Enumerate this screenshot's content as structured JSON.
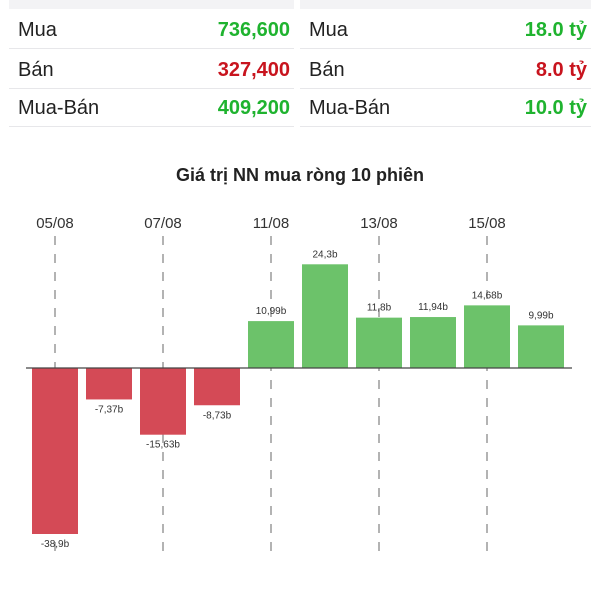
{
  "summary_left": {
    "rows": [
      {
        "label": "Mua",
        "value": "736,600",
        "tone": "green"
      },
      {
        "label": "Bán",
        "value": "327,400",
        "tone": "red"
      },
      {
        "label": "Mua-Bán",
        "value": "409,200",
        "tone": "green"
      }
    ]
  },
  "summary_right": {
    "rows": [
      {
        "label": "Mua",
        "value": "18.0 tỷ",
        "tone": "green"
      },
      {
        "label": "Bán",
        "value": "8.0 tỷ",
        "tone": "red"
      },
      {
        "label": "Mua-Bán",
        "value": "10.0 tỷ",
        "tone": "green"
      }
    ]
  },
  "colors": {
    "positive": "#6cc26a",
    "negative": "#d44a56",
    "green_text": "#1fb32f",
    "red_text": "#c8141e"
  },
  "chart_data": {
    "type": "bar",
    "title": "Giá trị NN mua ròng 10 phiên",
    "x_tick_labels": [
      "05/08",
      "07/08",
      "11/08",
      "13/08",
      "15/08"
    ],
    "x_tick_bar_index": [
      0,
      2,
      4,
      6,
      8
    ],
    "values": [
      -38.9,
      -7.37,
      -15.63,
      -8.73,
      10.99,
      24.3,
      11.8,
      11.94,
      14.68,
      9.99
    ],
    "value_labels": [
      "-38,9b",
      "-7,37b",
      "-15,63b",
      "-8,73b",
      "10,99b",
      "24,3b",
      "11,8b",
      "11,94b",
      "14,68b",
      "9,99b"
    ],
    "ylim": [
      -41,
      25
    ],
    "grid": "dashed vertical at tick positions",
    "legend": "none"
  }
}
